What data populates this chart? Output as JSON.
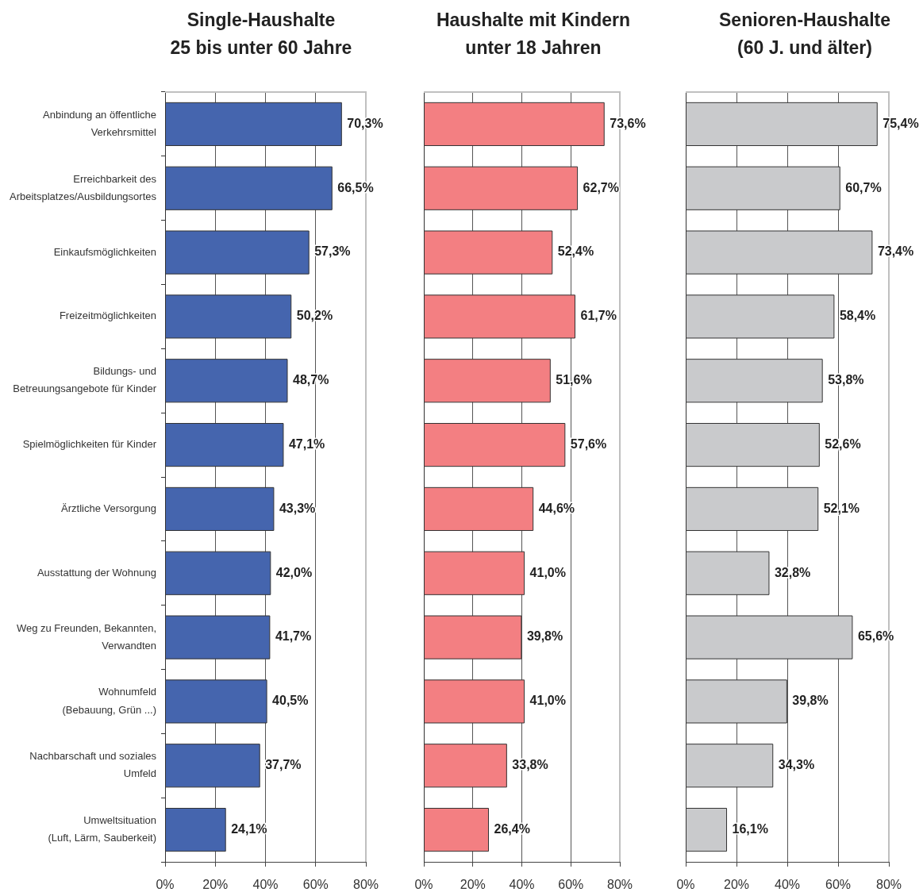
{
  "chart_data": [
    {
      "type": "bar",
      "orientation": "horizontal",
      "title": "Single-Haushalte\n25 bis unter 60 Jahre",
      "categories": [
        "Anbindung an öffentliche\nVerkehrsmittel",
        "Erreichbarkeit des\nArbeitsplatzes/Ausbildungsortes",
        "Einkaufsmöglichkeiten",
        "Freizeitmöglichkeiten",
        "Bildungs- und\nBetreuungsangebote für Kinder",
        "Spielmöglichkeiten für Kinder",
        "Ärztliche Versorgung",
        "Ausstattung der Wohnung",
        "Weg zu Freunden, Bekannten,\nVerwandten",
        "Wohnumfeld\n(Bebauung, Grün ...)",
        "Nachbarschaft und soziales\nUmfeld",
        "Umweltsituation\n(Luft, Lärm, Sauberkeit)"
      ],
      "values": [
        70.3,
        66.5,
        57.3,
        50.2,
        48.7,
        47.1,
        43.3,
        42.0,
        41.7,
        40.5,
        37.7,
        24.1
      ],
      "value_labels": [
        "70,3%",
        "66,5%",
        "57,3%",
        "50,2%",
        "48,7%",
        "47,1%",
        "43,3%",
        "42,0%",
        "41,7%",
        "40,5%",
        "37,7%",
        "24,1%"
      ],
      "color": "#4565ae",
      "xlim": [
        0,
        80
      ],
      "xticks": [
        {
          "value": 0,
          "label": "0%"
        },
        {
          "value": 20,
          "label": "20%"
        },
        {
          "value": 40,
          "label": "40%"
        },
        {
          "value": 60,
          "label": "60%"
        },
        {
          "value": 80,
          "label": "80%"
        }
      ],
      "grid": "x"
    },
    {
      "type": "bar",
      "orientation": "horizontal",
      "title": "Haushalte mit Kindern\nunter 18 Jahren",
      "categories": [
        null,
        null,
        null,
        null,
        null,
        null,
        null,
        null,
        null,
        null,
        null,
        null
      ],
      "values": [
        73.6,
        62.7,
        52.4,
        61.7,
        51.6,
        57.6,
        44.6,
        41.0,
        39.8,
        41.0,
        33.8,
        26.4
      ],
      "value_labels": [
        "73,6%",
        "62,7%",
        "52,4%",
        "61,7%",
        "51,6%",
        "57,6%",
        "44,6%",
        "41,0%",
        "39,8%",
        "41,0%",
        "33,8%",
        "26,4%"
      ],
      "color": "#f37f82",
      "xlim": [
        0,
        80
      ],
      "xticks": [
        {
          "value": 0,
          "label": "0%"
        },
        {
          "value": 20,
          "label": "20%"
        },
        {
          "value": 40,
          "label": "40%"
        },
        {
          "value": 60,
          "label": "60%"
        },
        {
          "value": 80,
          "label": "80%"
        }
      ],
      "grid": "x",
      "tick_labels": "x"
    },
    {
      "type": "bar",
      "orientation": "horizontal",
      "title": "Senioren-Haushalte\n(60 J. und älter)",
      "categories": [
        null,
        null,
        null,
        null,
        null,
        null,
        null,
        null,
        null,
        null,
        null,
        null
      ],
      "values": [
        75.4,
        60.7,
        73.4,
        58.4,
        53.8,
        52.6,
        52.1,
        32.8,
        65.6,
        39.8,
        34.3,
        16.1
      ],
      "value_labels": [
        "75,4%",
        "60,7%",
        "73,4%",
        "58,4%",
        "53,8%",
        "52,6%",
        "52,1%",
        "32,8%",
        "65,6%",
        "39,8%",
        "34,3%",
        "16,1%"
      ],
      "color": "#c9cacc",
      "xlim": [
        0,
        80
      ],
      "xticks": [
        {
          "value": 0,
          "label": "0%"
        },
        {
          "value": 20,
          "label": "20%"
        },
        {
          "value": 40,
          "label": "40%"
        },
        {
          "value": 60,
          "label": "60%"
        },
        {
          "value": 80,
          "label": "80%"
        }
      ],
      "grid": "x",
      "tick_labels": "x"
    }
  ]
}
